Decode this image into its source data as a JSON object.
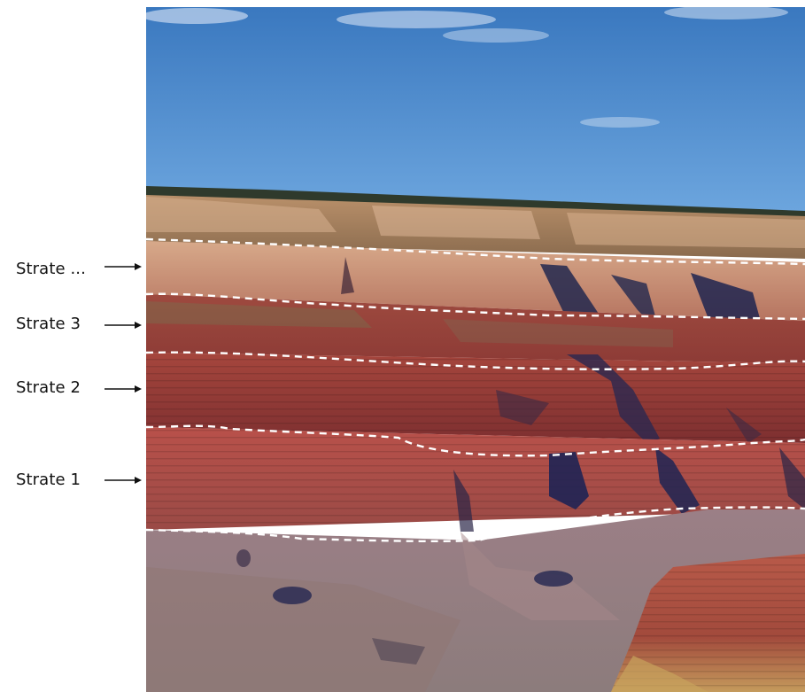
{
  "labels": [
    {
      "text": "Strate ..."
    },
    {
      "text": "Strate 3"
    },
    {
      "text": "Strate 2"
    },
    {
      "text": "Strate 1"
    }
  ],
  "colors": {
    "sky_top": "#3f7cc0",
    "sky_bottom": "#6aa4de",
    "rim_rock": "#c9a27c",
    "red_rock": "#a24638",
    "dark_red_rock": "#7c2f2f",
    "slope_gray": "#9e8f95",
    "shadow": "#1f2a55",
    "boundary_line": "#ffffff"
  },
  "photo_description_icon": "canyon-photo-icon"
}
